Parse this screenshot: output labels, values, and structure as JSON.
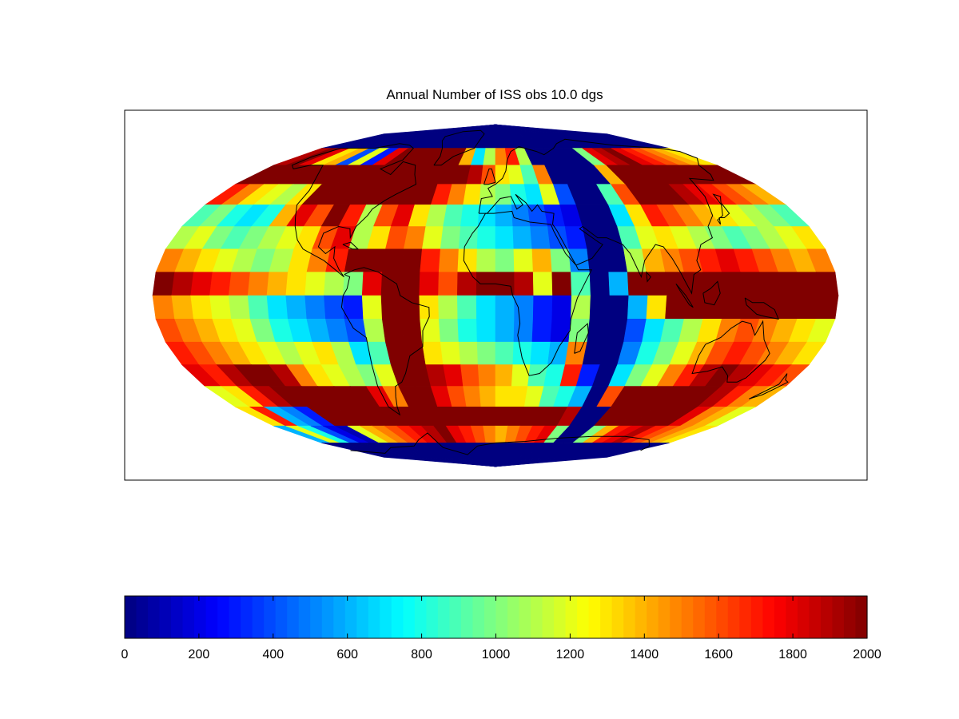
{
  "chart_data": {
    "type": "heatmap",
    "title": "Annual Number of ISS obs 10.0 dgs",
    "projection": "mollweide",
    "coastlines": true,
    "colormap": "jet",
    "colorbar": {
      "location": "bottom",
      "range": [
        0,
        2000
      ],
      "ticks": [
        "0",
        "200",
        "400",
        "600",
        "800",
        "1000",
        "1200",
        "1400",
        "1600",
        "1800",
        "2000"
      ]
    },
    "grid_resolution_deg": 10,
    "lon_bins": [
      -180,
      -170,
      -160,
      -150,
      -140,
      -130,
      -120,
      -110,
      -100,
      -90,
      -80,
      -70,
      -60,
      -50,
      -40,
      -30,
      -20,
      -10,
      0,
      10,
      20,
      30,
      40,
      50,
      60,
      70,
      80,
      90,
      100,
      110,
      120,
      130,
      140,
      150,
      160,
      170
    ],
    "lat_bins": [
      80,
      70,
      60,
      50,
      40,
      30,
      20,
      10,
      0,
      -10,
      -20,
      -30,
      -40,
      -50,
      -60,
      -70,
      -80,
      -90
    ],
    "values": [
      [
        0,
        0,
        0,
        0,
        0,
        0,
        0,
        0,
        0,
        0,
        0,
        0,
        0,
        0,
        0,
        0,
        0,
        0,
        0,
        0,
        0,
        0,
        0,
        0,
        0,
        0,
        0,
        0,
        0,
        0,
        0,
        0,
        0,
        0,
        0,
        0
      ],
      [
        0,
        0,
        0,
        0,
        0,
        0,
        0,
        0,
        0,
        0,
        0,
        0,
        0,
        0,
        0,
        0,
        0,
        0,
        0,
        0,
        0,
        0,
        0,
        0,
        0,
        0,
        0,
        0,
        0,
        0,
        0,
        0,
        0,
        0,
        0,
        0
      ],
      [
        1900,
        2000,
        1800,
        1300,
        1400,
        400,
        1200,
        300,
        1800,
        2000,
        2000,
        2000,
        2000,
        2000,
        2000,
        1400,
        700,
        1100,
        1500,
        1700,
        1100,
        0,
        0,
        0,
        0,
        0,
        1000,
        1800,
        1900,
        2000,
        1800,
        1700,
        1600,
        1500,
        1400,
        1300
      ],
      [
        2000,
        2000,
        2000,
        2000,
        2000,
        2000,
        2000,
        2000,
        2000,
        2000,
        2000,
        2000,
        2000,
        2000,
        2000,
        2000,
        1900,
        1600,
        1300,
        1200,
        900,
        1500,
        0,
        0,
        0,
        0,
        1400,
        2000,
        2000,
        2000,
        2000,
        2000,
        2000,
        2000,
        2000,
        2000
      ],
      [
        1700,
        1500,
        1300,
        1200,
        1100,
        1300,
        2000,
        2000,
        2000,
        2000,
        2000,
        2000,
        2000,
        2000,
        1700,
        1500,
        1300,
        1100,
        1000,
        800,
        700,
        1200,
        400,
        0,
        0,
        900,
        1600,
        2000,
        2000,
        2000,
        1900,
        1800,
        1700,
        1600,
        1500,
        1400
      ],
      [
        900,
        1000,
        800,
        700,
        800,
        1400,
        1800,
        1600,
        2000,
        1700,
        1100,
        1600,
        1800,
        1300,
        1100,
        900,
        800,
        700,
        600,
        500,
        400,
        300,
        200,
        0,
        0,
        700,
        1300,
        1700,
        1600,
        1500,
        1400,
        1300,
        1200,
        1100,
        1000,
        900
      ],
      [
        1100,
        1200,
        1000,
        900,
        1000,
        1100,
        1200,
        1300,
        1600,
        1800,
        1100,
        1300,
        1600,
        1500,
        1200,
        1000,
        900,
        800,
        700,
        600,
        500,
        400,
        300,
        0,
        0,
        900,
        1200,
        1300,
        1200,
        1100,
        1000,
        900,
        1000,
        1100,
        1200,
        1300
      ],
      [
        1500,
        1400,
        1300,
        1200,
        1100,
        1000,
        1100,
        1300,
        1500,
        1700,
        2000,
        2000,
        2000,
        2000,
        1700,
        1500,
        1300,
        1100,
        1000,
        1200,
        1400,
        1000,
        500,
        0,
        0,
        1100,
        1400,
        1500,
        1600,
        1700,
        1800,
        1700,
        1600,
        1500,
        1400,
        1500
      ],
      [
        2000,
        1900,
        1800,
        1700,
        1600,
        1500,
        1400,
        1300,
        1200,
        1100,
        1000,
        1800,
        2000,
        2000,
        1800,
        1600,
        1900,
        2000,
        2000,
        1900,
        1200,
        2000,
        900,
        0,
        600,
        2000,
        2000,
        2000,
        2000,
        2000,
        2000,
        2000,
        2000,
        2000,
        2000,
        2000
      ],
      [
        1500,
        1400,
        1300,
        1200,
        1100,
        900,
        700,
        600,
        500,
        400,
        300,
        1200,
        2000,
        2000,
        1300,
        1100,
        900,
        700,
        600,
        500,
        300,
        200,
        1100,
        0,
        0,
        600,
        1300,
        2000,
        2000,
        2000,
        2000,
        2000,
        2000,
        2000,
        2000,
        2000
      ],
      [
        1600,
        1500,
        1400,
        1300,
        1200,
        1000,
        800,
        700,
        600,
        500,
        400,
        1100,
        2000,
        2000,
        1200,
        1000,
        800,
        700,
        600,
        500,
        300,
        200,
        1000,
        0,
        0,
        400,
        700,
        900,
        1100,
        1300,
        1500,
        1600,
        1500,
        1400,
        1300,
        1200
      ],
      [
        1700,
        1600,
        1500,
        1400,
        1300,
        1200,
        1100,
        1200,
        1300,
        1100,
        700,
        900,
        2000,
        2000,
        1300,
        1200,
        1100,
        1000,
        900,
        800,
        700,
        600,
        1500,
        0,
        0,
        500,
        800,
        1000,
        1200,
        1400,
        1600,
        1700,
        1600,
        1500,
        1400,
        1300
      ],
      [
        1800,
        1700,
        1900,
        2000,
        2000,
        1900,
        1500,
        1300,
        1200,
        1100,
        1000,
        1200,
        2000,
        2000,
        1900,
        1800,
        1600,
        1500,
        1400,
        1200,
        900,
        800,
        1700,
        300,
        0,
        700,
        1000,
        1200,
        1500,
        1700,
        1900,
        2000,
        1900,
        1800,
        1700,
        1600
      ],
      [
        1200,
        1300,
        1700,
        1900,
        2000,
        2000,
        2000,
        2000,
        2000,
        2000,
        1800,
        1500,
        2000,
        2000,
        1800,
        1600,
        1500,
        1400,
        1300,
        1300,
        1200,
        900,
        800,
        600,
        0,
        1600,
        2000,
        2000,
        2000,
        2000,
        2000,
        2000,
        1900,
        1700,
        1500,
        1400
      ],
      [
        1300,
        1700,
        600,
        500,
        300,
        2000,
        2000,
        2000,
        2000,
        2000,
        2000,
        2000,
        2000,
        2000,
        2000,
        2000,
        2000,
        2000,
        2000,
        2000,
        2000,
        2000,
        2000,
        1900,
        0,
        0,
        2000,
        2000,
        2000,
        2000,
        2000,
        2000,
        1800,
        1500,
        1400,
        1200
      ],
      [
        600,
        1200,
        800,
        400,
        200,
        100,
        1200,
        1400,
        1500,
        1600,
        1700,
        1800,
        1900,
        2000,
        1800,
        1700,
        1600,
        1500,
        1400,
        1500,
        1600,
        1700,
        1800,
        1000,
        0,
        0,
        1000,
        1400,
        1700,
        1800,
        1900,
        1700,
        1600,
        1500,
        1400,
        1300
      ],
      [
        0,
        0,
        0,
        0,
        0,
        0,
        0,
        0,
        0,
        0,
        0,
        0,
        0,
        0,
        0,
        0,
        0,
        0,
        0,
        0,
        0,
        0,
        0,
        0,
        0,
        0,
        0,
        0,
        0,
        0,
        0,
        0,
        0,
        0,
        0,
        0
      ],
      [
        0,
        0,
        0,
        0,
        0,
        0,
        0,
        0,
        0,
        0,
        0,
        0,
        0,
        0,
        0,
        0,
        0,
        0,
        0,
        0,
        0,
        0,
        0,
        0,
        0,
        0,
        0,
        0,
        0,
        0,
        0,
        0,
        0,
        0,
        0,
        0
      ]
    ]
  }
}
